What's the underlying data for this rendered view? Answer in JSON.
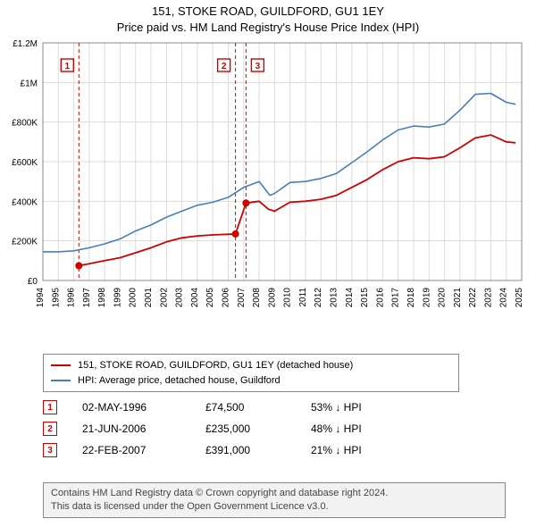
{
  "title_line1": "151, STOKE ROAD, GUILDFORD, GU1 1EY",
  "title_line2": "Price paid vs. HM Land Registry's House Price Index (HPI)",
  "chart": {
    "type": "line",
    "background_color": "#ffffff",
    "grid_color": "#dcdcdc",
    "plot_border_color": "#888888",
    "xlim": [
      1994,
      2025
    ],
    "ylim": [
      0,
      1200000
    ],
    "ytick_step": 200000,
    "ytick_labels": [
      "£0",
      "£200K",
      "£400K",
      "£600K",
      "£800K",
      "£1M",
      "£1.2M"
    ],
    "xtick_step": 1,
    "xtick_labels": [
      "1994",
      "1995",
      "1996",
      "1997",
      "1998",
      "1999",
      "2000",
      "2001",
      "2002",
      "2003",
      "2004",
      "2005",
      "2006",
      "2007",
      "2008",
      "2009",
      "2010",
      "2011",
      "2012",
      "2013",
      "2014",
      "2015",
      "2016",
      "2017",
      "2018",
      "2019",
      "2020",
      "2021",
      "2022",
      "2023",
      "2024",
      "2025"
    ],
    "label_fontsize": 11,
    "tick_fontsize": 10,
    "series": [
      {
        "name": "price_paid",
        "label": "151, STOKE ROAD, GUILDFORD, GU1 1EY (detached house)",
        "color": "#d00000",
        "line_width": 1.8,
        "data": [
          [
            1996.33,
            74500
          ],
          [
            1997,
            85000
          ],
          [
            1998,
            100000
          ],
          [
            1999,
            115000
          ],
          [
            2000,
            140000
          ],
          [
            2001,
            165000
          ],
          [
            2002,
            195000
          ],
          [
            2003,
            215000
          ],
          [
            2004,
            225000
          ],
          [
            2005,
            230000
          ],
          [
            2006.47,
            235000
          ],
          [
            2007.15,
            391000
          ],
          [
            2008,
            400000
          ],
          [
            2008.6,
            360000
          ],
          [
            2009,
            350000
          ],
          [
            2010,
            395000
          ],
          [
            2011,
            400000
          ],
          [
            2012,
            410000
          ],
          [
            2013,
            430000
          ],
          [
            2014,
            470000
          ],
          [
            2015,
            510000
          ],
          [
            2016,
            560000
          ],
          [
            2017,
            600000
          ],
          [
            2018,
            620000
          ],
          [
            2019,
            615000
          ],
          [
            2020,
            625000
          ],
          [
            2021,
            670000
          ],
          [
            2022,
            720000
          ],
          [
            2023,
            735000
          ],
          [
            2024,
            700000
          ],
          [
            2024.6,
            695000
          ]
        ]
      },
      {
        "name": "hpi",
        "label": "HPI: Average price, detached house, Guildford",
        "color": "#4a7ebb",
        "line_width": 1.6,
        "data": [
          [
            1994,
            145000
          ],
          [
            1995,
            145000
          ],
          [
            1996,
            150000
          ],
          [
            1997,
            165000
          ],
          [
            1998,
            185000
          ],
          [
            1999,
            210000
          ],
          [
            2000,
            250000
          ],
          [
            2001,
            280000
          ],
          [
            2002,
            320000
          ],
          [
            2003,
            350000
          ],
          [
            2004,
            380000
          ],
          [
            2005,
            395000
          ],
          [
            2006,
            420000
          ],
          [
            2007,
            470000
          ],
          [
            2008,
            500000
          ],
          [
            2008.7,
            430000
          ],
          [
            2009,
            440000
          ],
          [
            2010,
            495000
          ],
          [
            2011,
            500000
          ],
          [
            2012,
            515000
          ],
          [
            2013,
            540000
          ],
          [
            2014,
            595000
          ],
          [
            2015,
            650000
          ],
          [
            2016,
            710000
          ],
          [
            2017,
            760000
          ],
          [
            2018,
            780000
          ],
          [
            2019,
            775000
          ],
          [
            2020,
            790000
          ],
          [
            2021,
            860000
          ],
          [
            2022,
            940000
          ],
          [
            2023,
            945000
          ],
          [
            2024,
            900000
          ],
          [
            2024.6,
            890000
          ]
        ]
      }
    ],
    "event_markers": [
      {
        "n": "1",
        "x": 1996.33,
        "y": 74500,
        "date": "02-MAY-1996",
        "price": "£74,500",
        "diff": "53% ↓ HPI"
      },
      {
        "n": "2",
        "x": 2006.47,
        "y": 235000,
        "date": "21-JUN-2006",
        "price": "£235,000",
        "diff": "48% ↓ HPI"
      },
      {
        "n": "3",
        "x": 2007.15,
        "y": 391000,
        "date": "22-FEB-2007",
        "price": "£391,000",
        "diff": "21% ↓ HPI"
      }
    ],
    "event_vline_color": "#d00000",
    "event_vline_dash": "4,3",
    "event_marker_border": "#d00000",
    "event_marker_bg": "#ffffff",
    "event_marker_text_color": "#d00000",
    "event_dot_radius": 4
  },
  "legend": {
    "border_color": "#888888",
    "fontsize": 11
  },
  "footer_line1": "Contains HM Land Registry data © Crown copyright and database right 2024.",
  "footer_line2": "This data is licensed under the Open Government Licence v3.0."
}
